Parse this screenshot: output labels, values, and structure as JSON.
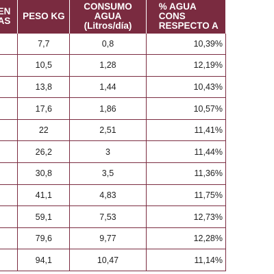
{
  "table": {
    "headers": {
      "age": "O EN\nANAS",
      "peso": "PESO KG",
      "consumo": "CONSUMO AGUA\n(Litros/día)",
      "pct": "% AGUA CONS\nRESPECTO A"
    },
    "rows": [
      {
        "peso": "7,7",
        "consumo": "0,8",
        "pct": "10,39%"
      },
      {
        "peso": "10,5",
        "consumo": "1,28",
        "pct": "12,19%"
      },
      {
        "peso": "13,8",
        "consumo": "1,44",
        "pct": "10,43%"
      },
      {
        "peso": "17,6",
        "consumo": "1,86",
        "pct": "10,57%"
      },
      {
        "peso": "22",
        "consumo": "2,51",
        "pct": "11,41%"
      },
      {
        "peso": "26,2",
        "consumo": "3",
        "pct": "11,44%"
      },
      {
        "peso": "30,8",
        "consumo": "3,5",
        "pct": "11,36%"
      },
      {
        "peso": "41,1",
        "consumo": "4,83",
        "pct": "11,75%"
      },
      {
        "peso": "59,1",
        "consumo": "7,53",
        "pct": "12,73%"
      },
      {
        "peso": "79,6",
        "consumo": "9,77",
        "pct": "12,28%"
      },
      {
        "peso": "94,1",
        "consumo": "10,47",
        "pct": "11,14%"
      }
    ]
  },
  "colors": {
    "header_background": "#7a2b40",
    "header_text": "#ffffff",
    "border": "#7a2b40",
    "cell_text": "#1e1e1e"
  }
}
